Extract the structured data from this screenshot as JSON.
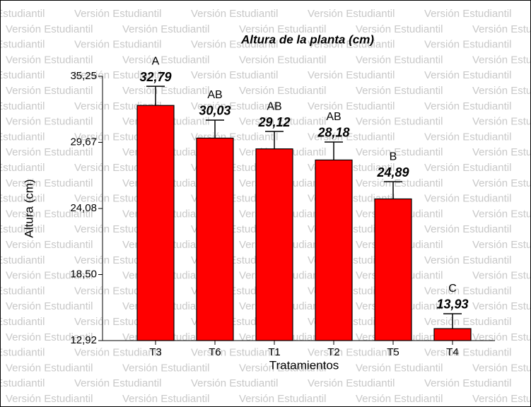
{
  "chart_data": {
    "type": "bar",
    "title": "Altura de la planta (cm)",
    "xlabel": "Tratamientos",
    "ylabel": "Altura (cm)",
    "watermark": "Versión Estudiantil",
    "categories": [
      "T3",
      "T6",
      "T1",
      "T2",
      "T5",
      "T4"
    ],
    "values": [
      32.79,
      30.03,
      29.12,
      28.18,
      24.89,
      13.93
    ],
    "value_labels": [
      "32,79",
      "30,03",
      "29,12",
      "28,18",
      "24,89",
      "13,93"
    ],
    "errors": [
      1.62,
      1.52,
      1.47,
      1.52,
      1.46,
      1.26
    ],
    "groups": [
      "A",
      "AB",
      "AB",
      "AB",
      "B",
      "C"
    ],
    "color": "#ff0000",
    "ylim": [
      12.92,
      35.25
    ],
    "yticks": [
      {
        "value": 12.92,
        "label": "12,92"
      },
      {
        "value": 18.5,
        "label": "18,50"
      },
      {
        "value": 24.08,
        "label": "24,08"
      },
      {
        "value": 29.67,
        "label": "29,67"
      },
      {
        "value": 35.25,
        "label": "35,25"
      }
    ]
  }
}
